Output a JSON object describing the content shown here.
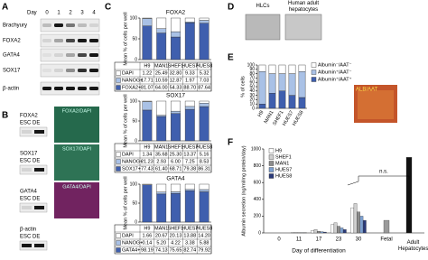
{
  "panel_labels": [
    "A",
    "B",
    "C",
    "D",
    "E",
    "F"
  ],
  "panel_a": {
    "header": "Day",
    "lanes": [
      "0",
      "1",
      "2",
      "3",
      "4"
    ],
    "rows": [
      "Brachyury",
      "FOXA2",
      "GATA4",
      "SOX17",
      "β-actin"
    ]
  },
  "panel_b": {
    "rows": [
      {
        "label": "FOXA2",
        "lanes": "ESC DE",
        "stain": "FOXA2/DAPI"
      },
      {
        "label": "SOX17",
        "lanes": "ESC DE",
        "stain": "SOX17/DAPI"
      },
      {
        "label": "GATA4",
        "lanes": "ESC DE",
        "stain": "GATA4/DAPI"
      },
      {
        "label": "β-actin",
        "lanes": "ESC DE"
      }
    ]
  },
  "panel_d": {
    "images": [
      "HLCs",
      "Human adult hepatocytes"
    ]
  },
  "panel_e_image_label": "ALB/AAT",
  "chart_data": [
    {
      "type": "bar",
      "stacked": true,
      "title": "FOXA2",
      "ylabel": "Mean % of cells per well",
      "categories": [
        "H9",
        "MAN1",
        "SHEF1",
        "HUES7",
        "HUES8"
      ],
      "ylim": [
        0,
        100
      ],
      "yticks": [
        0,
        50,
        100
      ],
      "series": [
        {
          "name": "DAPI",
          "color": "#ffffff",
          "values": [
            1.22,
            25.49,
            32.8,
            9.33,
            5.32
          ],
          "value_labels": [
            "1.22",
            "25.49",
            "32.80",
            "9.33",
            "5.32"
          ]
        },
        {
          "name": "NANOG+",
          "color": "#a9c1e6",
          "values": [
            17.71,
            10.59,
            12.87,
            1.97,
            7.03
          ],
          "value_labels": [
            "17.71",
            "10.59",
            "12.87",
            "1.97",
            "7.03"
          ]
        },
        {
          "name": "FOXA2+",
          "color": "#3f5fae",
          "values": [
            81.07,
            64.0,
            54.33,
            88.7,
            87.64
          ],
          "value_labels": [
            "81.07",
            "64.00",
            "54.33",
            "88.70",
            "87.64"
          ]
        }
      ]
    },
    {
      "type": "bar",
      "stacked": true,
      "title": "SOX17",
      "ylabel": "Mean % of cells per well",
      "categories": [
        "H9",
        "MAN1",
        "SHEF1",
        "HUES7",
        "HUES8"
      ],
      "ylim": [
        0,
        100
      ],
      "yticks": [
        0,
        50,
        100
      ],
      "series": [
        {
          "name": "DAPI",
          "color": "#ffffff",
          "values": [
            1.34,
            35.68,
            25.3,
            13.37,
            5.16
          ],
          "value_labels": [
            "1.34",
            "35.68",
            "25.30",
            "13.37",
            "5.16"
          ]
        },
        {
          "name": "NANOG+",
          "color": "#a9c1e6",
          "values": [
            21.23,
            2.93,
            6.0,
            7.25,
            8.53
          ],
          "value_labels": [
            "21.23",
            "2.93",
            "6.00",
            "7.25",
            "8.53"
          ]
        },
        {
          "name": "SOX17+",
          "color": "#3f5fae",
          "values": [
            77.43,
            61.4,
            68.71,
            79.38,
            86.31
          ],
          "value_labels": [
            "77.43",
            "61.40",
            "68.71",
            "79.38",
            "86.31"
          ]
        }
      ]
    },
    {
      "type": "bar",
      "stacked": true,
      "title": "GATA4",
      "ylabel": "Mean % of cells per well",
      "categories": [
        "H9",
        "MAN1",
        "SHEF1",
        "HUES7",
        "HUES8"
      ],
      "ylim": [
        0,
        100
      ],
      "yticks": [
        0,
        50,
        100
      ],
      "series": [
        {
          "name": "DAPI",
          "color": "#ffffff",
          "values": [
            1.66,
            20.67,
            20.13,
            13.88,
            14.2
          ],
          "value_labels": [
            "1.66",
            "20.67",
            "20.13",
            "13.88",
            "14.20"
          ]
        },
        {
          "name": "NANOG+",
          "color": "#a9c1e6",
          "values": [
            0.14,
            5.2,
            4.22,
            3.38,
            5.88
          ],
          "value_labels": [
            "0.14",
            "5.20",
            "4.22",
            "3.38",
            "5.88"
          ]
        },
        {
          "name": "GATA4+",
          "color": "#3f5fae",
          "values": [
            98.19,
            74.13,
            75.65,
            82.74,
            79.92
          ],
          "value_labels": [
            "98.19",
            "74.13",
            "75.65",
            "82.74",
            "79.92"
          ]
        }
      ]
    },
    {
      "type": "bar",
      "stacked": true,
      "ylabel": "% of cells",
      "categories": [
        "H9",
        "MAN1",
        "SHEF1",
        "HUES7",
        "HUES8"
      ],
      "ylim": [
        0,
        100
      ],
      "yticks": [
        0,
        10,
        20,
        30,
        40,
        50,
        60,
        70,
        80,
        90,
        100
      ],
      "series": [
        {
          "name": "Albumin⁻/AAT⁻",
          "color": "#ffffff",
          "values": [
            15,
            20,
            20,
            20,
            15
          ]
        },
        {
          "name": "Albumin⁺/AAT⁻",
          "color": "#a9c1e6",
          "values": [
            75,
            45,
            40,
            50,
            60
          ]
        },
        {
          "name": "Albumin⁺/AAT⁺",
          "color": "#3f5fae",
          "values": [
            10,
            35,
            40,
            30,
            25
          ]
        }
      ]
    },
    {
      "type": "bar",
      "stacked": false,
      "ylabel": "Albumin secretion (ng/ml/mg protein/day)",
      "xlabel": "Day of differentiation",
      "annotation": "n.s.",
      "categories": [
        "0",
        "11",
        "17",
        "23",
        "30"
      ],
      "ylim": [
        0,
        1000
      ],
      "yticks": [
        0,
        200,
        400,
        600,
        800,
        1000
      ],
      "series": [
        {
          "name": "H9",
          "color": "#ffffff",
          "values": [
            0,
            5,
            30,
            100,
            300
          ]
        },
        {
          "name": "SHEF1",
          "color": "#d0d0d0",
          "values": [
            0,
            5,
            40,
            120,
            350
          ]
        },
        {
          "name": "MAN1",
          "color": "#8c8c8c",
          "values": [
            0,
            3,
            20,
            80,
            250
          ]
        },
        {
          "name": "HUES7",
          "color": "#7da0d0",
          "values": [
            0,
            3,
            15,
            60,
            200
          ]
        },
        {
          "name": "HUES8",
          "color": "#2a3a7a",
          "values": [
            0,
            2,
            10,
            40,
            150
          ]
        }
      ],
      "references": [
        {
          "label": "Fetal",
          "value": 150,
          "color": "#9a9a9a"
        },
        {
          "label": "Adult Hepatocytes",
          "value": 900,
          "color": "#111111"
        }
      ]
    }
  ]
}
